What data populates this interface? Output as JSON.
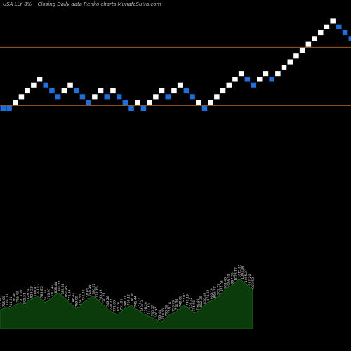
{
  "header": {
    "ticker": "USA LLY 8%",
    "chart_name": "Closing Daily data  Renko  charts MunafaSutra.com"
  },
  "colors": {
    "background": "#000000",
    "up_brick": "#ffffff",
    "down_brick": "#1e6fdc",
    "level_line": "#b8692c",
    "volume_fill": "#0b3a0b",
    "volume_edge": "#1f6e1f"
  },
  "chart_data": {
    "type": "renko",
    "brick_size": 1,
    "levels": [
      19,
      9
    ],
    "bricks": [
      {
        "dir": "down",
        "y": 8
      },
      {
        "dir": "down",
        "y": 8
      },
      {
        "dir": "up",
        "y": 9
      },
      {
        "dir": "up",
        "y": 10
      },
      {
        "dir": "up",
        "y": 11
      },
      {
        "dir": "up",
        "y": 12
      },
      {
        "dir": "up",
        "y": 13
      },
      {
        "dir": "down",
        "y": 12
      },
      {
        "dir": "down",
        "y": 11
      },
      {
        "dir": "down",
        "y": 10
      },
      {
        "dir": "up",
        "y": 11
      },
      {
        "dir": "up",
        "y": 12
      },
      {
        "dir": "down",
        "y": 11
      },
      {
        "dir": "down",
        "y": 10
      },
      {
        "dir": "down",
        "y": 9
      },
      {
        "dir": "up",
        "y": 10
      },
      {
        "dir": "up",
        "y": 11
      },
      {
        "dir": "down",
        "y": 10
      },
      {
        "dir": "up",
        "y": 11
      },
      {
        "dir": "down",
        "y": 10
      },
      {
        "dir": "down",
        "y": 9
      },
      {
        "dir": "down",
        "y": 8
      },
      {
        "dir": "up",
        "y": 9
      },
      {
        "dir": "down",
        "y": 8
      },
      {
        "dir": "up",
        "y": 9
      },
      {
        "dir": "up",
        "y": 10
      },
      {
        "dir": "up",
        "y": 11
      },
      {
        "dir": "down",
        "y": 10
      },
      {
        "dir": "up",
        "y": 11
      },
      {
        "dir": "up",
        "y": 12
      },
      {
        "dir": "down",
        "y": 11
      },
      {
        "dir": "down",
        "y": 10
      },
      {
        "dir": "up",
        "y": 9
      },
      {
        "dir": "down",
        "y": 8
      },
      {
        "dir": "up",
        "y": 9
      },
      {
        "dir": "up",
        "y": 10
      },
      {
        "dir": "up",
        "y": 11
      },
      {
        "dir": "up",
        "y": 12
      },
      {
        "dir": "up",
        "y": 13
      },
      {
        "dir": "up",
        "y": 14
      },
      {
        "dir": "down",
        "y": 13
      },
      {
        "dir": "down",
        "y": 12
      },
      {
        "dir": "up",
        "y": 13
      },
      {
        "dir": "up",
        "y": 14
      },
      {
        "dir": "down",
        "y": 13
      },
      {
        "dir": "up",
        "y": 14
      },
      {
        "dir": "up",
        "y": 15
      },
      {
        "dir": "up",
        "y": 16
      },
      {
        "dir": "up",
        "y": 17
      },
      {
        "dir": "up",
        "y": 18
      },
      {
        "dir": "up",
        "y": 19
      },
      {
        "dir": "up",
        "y": 20
      },
      {
        "dir": "up",
        "y": 21
      },
      {
        "dir": "up",
        "y": 22
      },
      {
        "dir": "up",
        "y": 23
      },
      {
        "dir": "down",
        "y": 22
      },
      {
        "dir": "down",
        "y": 21
      },
      {
        "dir": "down",
        "y": 20
      }
    ],
    "volume": [
      24,
      26,
      28,
      25,
      30,
      32,
      34,
      30,
      36,
      38,
      40,
      42,
      38,
      34,
      36,
      40,
      44,
      46,
      42,
      38,
      34,
      30,
      26,
      28,
      34,
      36,
      40,
      42,
      38,
      34,
      30,
      26,
      22,
      20,
      18,
      22,
      26,
      28,
      30,
      26,
      24,
      20,
      18,
      16,
      14,
      12,
      8,
      10,
      14,
      18,
      20,
      22,
      26,
      30,
      28,
      24,
      20,
      22,
      26,
      30,
      34,
      36,
      38,
      42,
      46,
      50,
      54,
      56,
      60,
      64,
      62,
      58,
      54,
      50
    ],
    "volume_labels": [
      "773.66",
      "715.09",
      "739.00",
      "744.51",
      "776.46",
      "766.43",
      "813.00",
      "805.51",
      "826.54",
      "828.23",
      "760.47",
      "791.07",
      "788.85",
      "761.56",
      "763.97",
      "797.94",
      "808.44",
      "800.44",
      "789.98",
      "780.28",
      "773.94",
      "748.42",
      "769.09",
      "764.36",
      "754.44",
      "758.89",
      "769.99",
      "780.32",
      "772.15",
      "765.19",
      "730.21",
      "743.26",
      "748.22",
      "771.60",
      "765.28",
      "751.05",
      "748.71",
      "760.12",
      "778.36",
      "741.44",
      "737.31",
      "748.03",
      "758.20",
      "711.40",
      "735.57",
      "746.95",
      "733.44",
      "710.46",
      "703.56",
      "755.16",
      "758.79",
      "738.00",
      "748.06",
      "753.03",
      "749.19",
      "759.42",
      "774.56",
      "798.44",
      "812.35",
      "850.49",
      "874.82",
      "900.19",
      "896.37",
      "909.52",
      "921.03",
      "901.48",
      "986.10",
      "997.36",
      "1028.17",
      "1015.85",
      "1093.00",
      "1005.27",
      "997.20",
      "999.50"
    ]
  }
}
